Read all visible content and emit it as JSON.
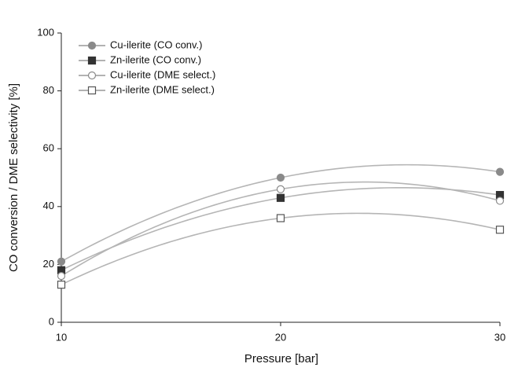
{
  "chart_data": {
    "type": "line",
    "x_label": "Pressure [bar]",
    "y_label": "CO conversion / DME selectivity [%]",
    "x": [
      10,
      20,
      30
    ],
    "xlim": [
      10,
      30
    ],
    "xticks": [
      10,
      20,
      30
    ],
    "ylim": [
      0,
      100
    ],
    "yticks": [
      0,
      20,
      40,
      60,
      80,
      100
    ],
    "legend": "upper left",
    "series": [
      {
        "name": "Cu-ilerite (CO conv.)",
        "color": "#8a8a8a",
        "marker": "circle",
        "filled": true,
        "values": [
          21,
          50,
          52
        ]
      },
      {
        "name": "Zn-ilerite (CO conv.)",
        "color": "#333333",
        "marker": "square",
        "filled": true,
        "values": [
          18,
          43,
          44
        ]
      },
      {
        "name": "Cu-ilerite (DME select.)",
        "color": "#8a8a8a",
        "marker": "circle",
        "filled": false,
        "values": [
          16,
          46,
          42
        ]
      },
      {
        "name": "Zn-ilerite (DME select.)",
        "color": "#555555",
        "marker": "square",
        "filled": false,
        "values": [
          13,
          36,
          32
        ]
      }
    ]
  }
}
